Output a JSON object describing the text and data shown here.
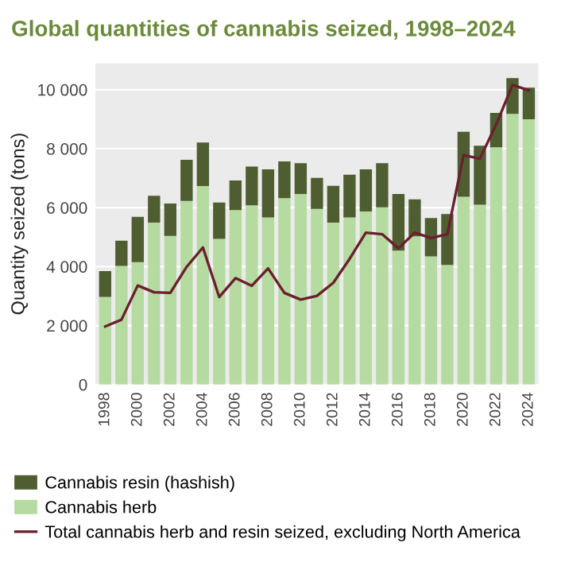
{
  "chart_data": {
    "type": "bar",
    "stacked": true,
    "title": "Global quantities of cannabis seized, 1998–2024",
    "ylabel": "Quantity seized (tons)",
    "categories": [
      "1998",
      null,
      "2000",
      null,
      "2002",
      null,
      "2004",
      null,
      "2006",
      null,
      "2008",
      null,
      "2010",
      null,
      "2012",
      null,
      "2014",
      null,
      "2016",
      null,
      "2018",
      null,
      "2020",
      null,
      "2022",
      null,
      "2024"
    ],
    "series": [
      {
        "name": "Cannabis herb",
        "color": "#b5dba0",
        "values": [
          2970,
          4020,
          4150,
          5490,
          5040,
          6230,
          6730,
          4940,
          5920,
          6080,
          5670,
          6320,
          6460,
          5960,
          5490,
          5670,
          5870,
          6010,
          4540,
          5030,
          4350,
          4060,
          6370,
          6100,
          8050,
          9180,
          9000
        ]
      },
      {
        "name": "Cannabis resin (hashish)",
        "color": "#4e5e30",
        "values": [
          880,
          860,
          1540,
          910,
          1100,
          1390,
          1480,
          1230,
          1000,
          1310,
          1630,
          1250,
          1050,
          1050,
          1250,
          1450,
          1430,
          1500,
          1920,
          1250,
          1300,
          1720,
          2200,
          2000,
          1160,
          1210,
          1070
        ]
      },
      {
        "name": "Total cannabis herb and resin seized, excluding North America",
        "type": "line",
        "color": "#6b1f2e",
        "values": [
          1970,
          2200,
          3360,
          3130,
          3110,
          3990,
          4650,
          2970,
          3610,
          3350,
          3940,
          3110,
          2880,
          3010,
          3450,
          4260,
          5150,
          5100,
          4620,
          5150,
          4970,
          5100,
          7780,
          7660,
          8820,
          10160,
          9980
        ]
      }
    ],
    "ylim": [
      0,
      10900
    ],
    "yticks": [
      0,
      {
        "value": 2000,
        "label": "2 000"
      },
      {
        "value": 4000,
        "label": "4 000"
      },
      {
        "value": 6000,
        "label": "6 000"
      },
      {
        "value": 8000,
        "label": "8 000"
      },
      {
        "value": 10000,
        "label": "10 000"
      }
    ],
    "grid": "y",
    "legend": "bottom"
  }
}
